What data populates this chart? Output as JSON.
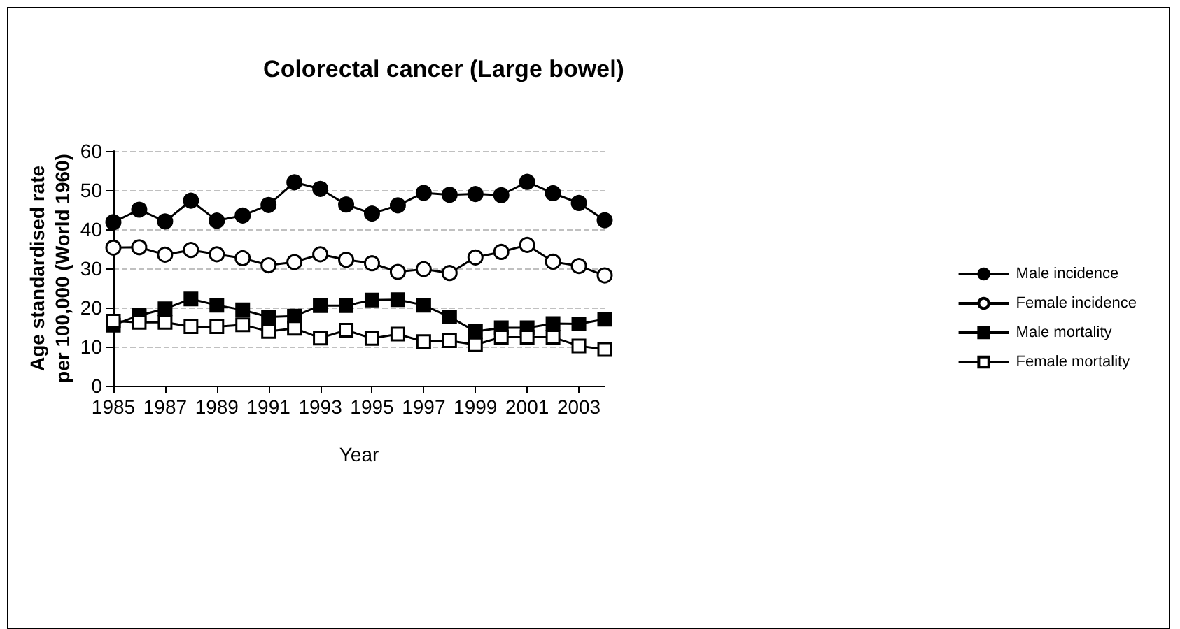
{
  "chart_data": {
    "type": "line",
    "title": "Colorectal cancer (Large bowel)",
    "xlabel": "Year",
    "ylabel": "Age standardised rate per 100,000 (World 1960)",
    "x": [
      1985,
      1986,
      1987,
      1988,
      1989,
      1990,
      1991,
      1992,
      1993,
      1994,
      1995,
      1996,
      1997,
      1998,
      1999,
      2000,
      2001,
      2002,
      2003,
      2004
    ],
    "series": [
      {
        "name": "Male incidence",
        "color": "#000000",
        "marker": "circle",
        "values": [
          41.8,
          45,
          42,
          47.3,
          42.2,
          43.5,
          46.2,
          52,
          50.3,
          46.3,
          44,
          46.1,
          49.3,
          48.8,
          49,
          48.7,
          52.1,
          49.2,
          46.7,
          42.3
        ]
      },
      {
        "name": "Female incidence",
        "color": "#000000",
        "marker": "circle",
        "values": [
          35.3,
          35.4,
          33.5,
          34.7,
          33.6,
          32.6,
          30.8,
          31.6,
          33.6,
          32.2,
          31.3,
          29.1,
          29.8,
          28.8,
          32.8,
          34.2,
          36,
          31.7,
          30.6,
          28.2
        ]
      },
      {
        "name": "Male mortality",
        "color": "#000000",
        "marker": "square",
        "values": [
          15.5,
          18,
          19.7,
          22.2,
          20.6,
          19.4,
          17.6,
          17.8,
          20.5,
          20.5,
          21.9,
          22,
          20.6,
          17.6,
          13.9,
          14.8,
          14.8,
          15.9,
          15.8,
          17
        ]
      },
      {
        "name": "Female mortality",
        "color": "#000000",
        "marker": "square",
        "values": [
          16.5,
          16.2,
          16.2,
          15.1,
          15.1,
          15.6,
          13.9,
          14.7,
          12.2,
          14.2,
          12.1,
          13.2,
          11.3,
          11.5,
          10.5,
          12.4,
          12.4,
          12.4,
          10.2,
          9.3
        ]
      }
    ],
    "xlim": [
      1985,
      2004
    ],
    "xticks": [
      1985,
      1987,
      1989,
      1991,
      1993,
      1995,
      1997,
      1999,
      2001,
      2003
    ],
    "ylim": [
      0,
      60
    ],
    "yticks": [
      0,
      10,
      20,
      30,
      40,
      50,
      60
    ],
    "grid": "y",
    "legend": "right",
    "line_style": "solid"
  }
}
